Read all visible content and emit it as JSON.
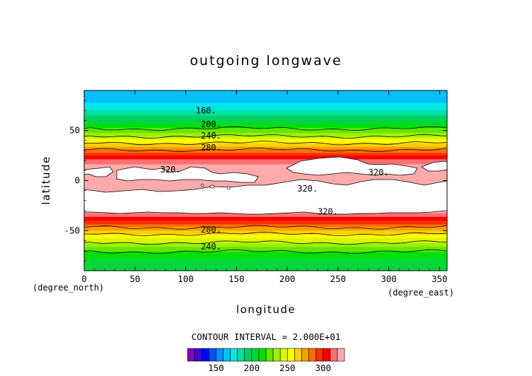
{
  "chart_data": {
    "type": "heatmap",
    "title": "outgoing longwave",
    "xlabel": "longitude",
    "ylabel": "latitude",
    "x_unit": "(degree_east)",
    "y_unit": "(degree_north)",
    "xlim": [
      0,
      357.5
    ],
    "ylim": [
      -90,
      90
    ],
    "x_ticks": [
      0,
      50,
      100,
      150,
      200,
      250,
      300,
      350
    ],
    "y_ticks": [
      -50,
      0,
      50
    ],
    "contour_interval_text": "CONTOUR INTERVAL = 2.000E+01",
    "colorbar": {
      "tick_labels": [
        150,
        200,
        250,
        300
      ],
      "levels": [
        110,
        120,
        130,
        140,
        150,
        160,
        170,
        180,
        190,
        200,
        210,
        220,
        230,
        240,
        250,
        260,
        270,
        280,
        290,
        300,
        310,
        320
      ],
      "colors": [
        "#7f00bf",
        "#3f00df",
        "#0000ff",
        "#0050ff",
        "#0090ff",
        "#00c0ff",
        "#00e6e6",
        "#00e0a0",
        "#00d060",
        "#00d838",
        "#00e000",
        "#60e800",
        "#a0f000",
        "#d8f800",
        "#ffff00",
        "#ffd000",
        "#ffa000",
        "#ff7000",
        "#ff3000",
        "#ff0000",
        "#ff7070",
        "#ffaaaa"
      ]
    },
    "zonal_profile": [
      {
        "lat": 90,
        "value": 165
      },
      {
        "lat": 85,
        "value": 165
      },
      {
        "lat": 80,
        "value": 168
      },
      {
        "lat": 75,
        "value": 172
      },
      {
        "lat": 70,
        "value": 180
      },
      {
        "lat": 65,
        "value": 190
      },
      {
        "lat": 60,
        "value": 200
      },
      {
        "lat": 55,
        "value": 212
      },
      {
        "lat": 50,
        "value": 225
      },
      {
        "lat": 45,
        "value": 238
      },
      {
        "lat": 40,
        "value": 252
      },
      {
        "lat": 35,
        "value": 268
      },
      {
        "lat": 30,
        "value": 282
      },
      {
        "lat": 25,
        "value": 300
      },
      {
        "lat": 20,
        "value": 315
      },
      {
        "lat": 15,
        "value": 322
      },
      {
        "lat": 10,
        "value": 325
      },
      {
        "lat": 5,
        "value": 328
      },
      {
        "lat": 0,
        "value": 330
      },
      {
        "lat": -5,
        "value": 330
      },
      {
        "lat": -10,
        "value": 330
      },
      {
        "lat": -15,
        "value": 330
      },
      {
        "lat": -20,
        "value": 330
      },
      {
        "lat": -25,
        "value": 328
      },
      {
        "lat": -30,
        "value": 325
      },
      {
        "lat": -35,
        "value": 315
      },
      {
        "lat": -40,
        "value": 300
      },
      {
        "lat": -45,
        "value": 285
      },
      {
        "lat": -50,
        "value": 270
      },
      {
        "lat": -55,
        "value": 255
      },
      {
        "lat": -60,
        "value": 245
      },
      {
        "lat": -65,
        "value": 232
      },
      {
        "lat": -70,
        "value": 222
      },
      {
        "lat": -75,
        "value": 212
      },
      {
        "lat": -80,
        "value": 208
      },
      {
        "lat": -85,
        "value": 206
      },
      {
        "lat": -90,
        "value": 205
      }
    ],
    "contour_labels": [
      {
        "text": "160.",
        "lon": 120,
        "lat": 70
      },
      {
        "text": "200.",
        "lon": 125,
        "lat": 56
      },
      {
        "text": "240.",
        "lon": 125,
        "lat": 45
      },
      {
        "text": "280.",
        "lon": 125,
        "lat": 33
      },
      {
        "text": "320.",
        "lon": 85,
        "lat": 11
      },
      {
        "text": "320.",
        "lon": 220,
        "lat": -8
      },
      {
        "text": "320.",
        "lon": 290,
        "lat": 8
      },
      {
        "text": "320.",
        "lon": 240,
        "lat": -31
      },
      {
        "text": "280.",
        "lon": 125,
        "lat": -49
      },
      {
        "text": "240.",
        "lon": 125,
        "lat": -66
      }
    ]
  }
}
